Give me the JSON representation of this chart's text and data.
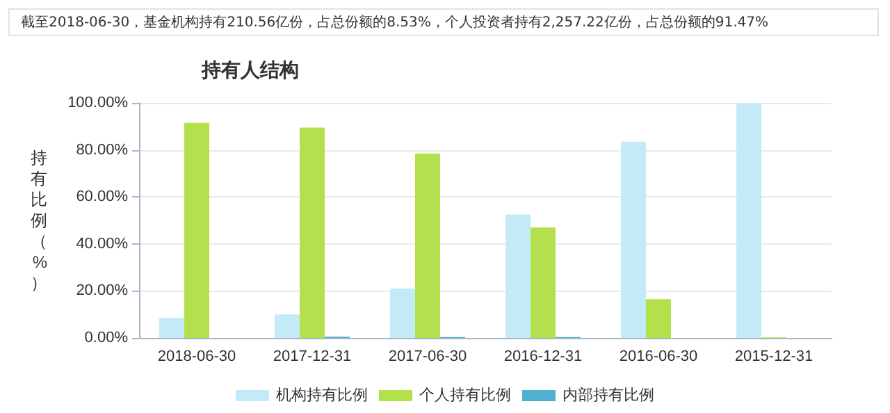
{
  "chart_data": {
    "type": "bar",
    "title": "持有人结构",
    "ylabel": "持有比例（%）",
    "annotations": [
      "截至2018-06-30，基金机构持有210.56亿份，占总份额的8.53%，个人投资者持有2,257.22亿份，占总份额的91.47%"
    ],
    "categories": [
      "2018-06-30",
      "2017-12-31",
      "2017-06-30",
      "2016-12-31",
      "2016-06-30",
      "2015-12-31"
    ],
    "series": [
      {
        "name": "机构持有比例",
        "color": "#c4eaf7",
        "values": [
          8.53,
          10,
          21,
          52.5,
          83.5,
          99.8
        ]
      },
      {
        "name": "个人持有比例",
        "color": "#b3e04c",
        "values": [
          91.47,
          89.5,
          78.5,
          47,
          16.5,
          0.2
        ]
      },
      {
        "name": "内部持有比例",
        "color": "#4fb0d0",
        "values": [
          0,
          0.5,
          0.4,
          0.4,
          0,
          0
        ]
      }
    ],
    "ylim": [
      0,
      100
    ],
    "yticks": [
      {
        "value": 0,
        "label": "0.00%"
      },
      {
        "value": 20,
        "label": "20.00%"
      },
      {
        "value": 40,
        "label": "40.00%"
      },
      {
        "value": 60,
        "label": "60.00%"
      },
      {
        "value": 80,
        "label": "80.00%"
      },
      {
        "value": 100,
        "label": "100.00%"
      }
    ],
    "grid": "y",
    "legend": "bottom"
  }
}
